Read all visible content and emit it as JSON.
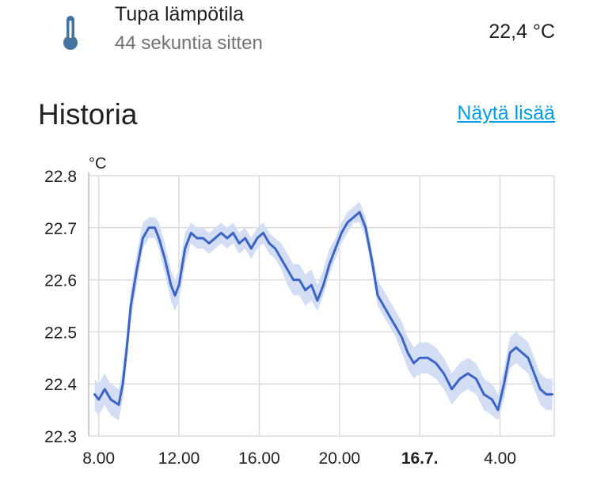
{
  "entity": {
    "name": "Tupa lämpötila",
    "last_changed": "44 sekuntia sitten",
    "state": "22,4 °C",
    "icon": "thermometer-icon",
    "icon_color": "#44739e"
  },
  "history": {
    "title": "Historia",
    "more_label": "Näytä lisää"
  },
  "chart_data": {
    "type": "line",
    "unit": "°C",
    "x_tick_labels": [
      "8.00",
      "12.00",
      "16.00",
      "20.00",
      "16.7.",
      "4.00"
    ],
    "x_tick_bold": [
      false,
      false,
      false,
      false,
      true,
      false
    ],
    "x": [
      7.8,
      8.0,
      8.3,
      8.6,
      9.0,
      9.2,
      9.4,
      9.6,
      9.9,
      10.2,
      10.5,
      10.8,
      11.0,
      11.3,
      11.6,
      11.8,
      12.0,
      12.3,
      12.6,
      12.9,
      13.2,
      13.5,
      13.8,
      14.1,
      14.4,
      14.7,
      15.0,
      15.3,
      15.6,
      15.9,
      16.2,
      16.5,
      16.8,
      17.1,
      17.4,
      17.7,
      18.0,
      18.3,
      18.6,
      18.9,
      19.2,
      19.5,
      19.8,
      20.1,
      20.4,
      20.7,
      21.0,
      21.3,
      21.6,
      21.9,
      22.2,
      22.5,
      22.8,
      23.1,
      23.4,
      23.7,
      24.0,
      24.4,
      24.8,
      25.2,
      25.6,
      26.0,
      26.4,
      26.8,
      27.2,
      27.6,
      27.9,
      28.2,
      28.5,
      28.8,
      29.1,
      29.4,
      29.7,
      30.0,
      30.3,
      30.6
    ],
    "series": [
      {
        "values": [
          22.38,
          22.37,
          22.39,
          22.37,
          22.36,
          22.4,
          22.47,
          22.55,
          22.62,
          22.68,
          22.7,
          22.7,
          22.68,
          22.64,
          22.59,
          22.57,
          22.59,
          22.66,
          22.69,
          22.68,
          22.68,
          22.67,
          22.68,
          22.69,
          22.68,
          22.69,
          22.67,
          22.68,
          22.66,
          22.68,
          22.69,
          22.67,
          22.66,
          22.64,
          22.62,
          22.6,
          22.6,
          22.58,
          22.59,
          22.56,
          22.59,
          22.63,
          22.66,
          22.69,
          22.71,
          22.72,
          22.73,
          22.7,
          22.64,
          22.57,
          22.55,
          22.53,
          22.51,
          22.49,
          22.46,
          22.44,
          22.45,
          22.45,
          22.44,
          22.42,
          22.39,
          22.41,
          22.42,
          22.41,
          22.38,
          22.37,
          22.35,
          22.4,
          22.46,
          22.47,
          22.46,
          22.45,
          22.42,
          22.39,
          22.38,
          22.38
        ],
        "min": [
          22.35,
          22.34,
          22.36,
          22.34,
          22.33,
          22.37,
          22.44,
          22.52,
          22.59,
          22.66,
          22.68,
          22.68,
          22.66,
          22.61,
          22.56,
          22.54,
          22.56,
          22.63,
          22.67,
          22.66,
          22.66,
          22.65,
          22.66,
          22.67,
          22.66,
          22.67,
          22.65,
          22.66,
          22.64,
          22.66,
          22.67,
          22.65,
          22.64,
          22.62,
          22.59,
          22.57,
          22.57,
          22.55,
          22.56,
          22.54,
          22.57,
          22.61,
          22.64,
          22.67,
          22.69,
          22.71,
          22.71,
          22.68,
          22.62,
          22.55,
          22.53,
          22.51,
          22.49,
          22.46,
          22.43,
          22.41,
          22.42,
          22.42,
          22.41,
          22.39,
          22.36,
          22.38,
          22.39,
          22.38,
          22.35,
          22.34,
          22.33,
          22.37,
          22.43,
          22.44,
          22.43,
          22.42,
          22.39,
          22.36,
          22.35,
          22.35
        ],
        "max": [
          22.41,
          22.4,
          22.42,
          22.4,
          22.39,
          22.43,
          22.5,
          22.58,
          22.65,
          22.71,
          22.72,
          22.72,
          22.71,
          22.67,
          22.62,
          22.6,
          22.62,
          22.69,
          22.71,
          22.7,
          22.7,
          22.69,
          22.7,
          22.71,
          22.7,
          22.71,
          22.69,
          22.7,
          22.68,
          22.7,
          22.71,
          22.69,
          22.68,
          22.67,
          22.65,
          22.63,
          22.63,
          22.61,
          22.62,
          22.59,
          22.62,
          22.66,
          22.68,
          22.71,
          22.73,
          22.74,
          22.75,
          22.72,
          22.66,
          22.6,
          22.58,
          22.56,
          22.54,
          22.52,
          22.49,
          22.47,
          22.48,
          22.48,
          22.47,
          22.45,
          22.42,
          22.44,
          22.45,
          22.44,
          22.41,
          22.4,
          22.38,
          22.43,
          22.49,
          22.5,
          22.49,
          22.48,
          22.45,
          22.42,
          22.41,
          22.41
        ]
      }
    ],
    "ylim": [
      22.3,
      22.8
    ],
    "y_ticks": [
      "22.8",
      "22.7",
      "22.6",
      "22.5",
      "22.4",
      "22.3"
    ],
    "line_color": "#3b64c4",
    "band_color": "#d3def5",
    "grid": true
  }
}
